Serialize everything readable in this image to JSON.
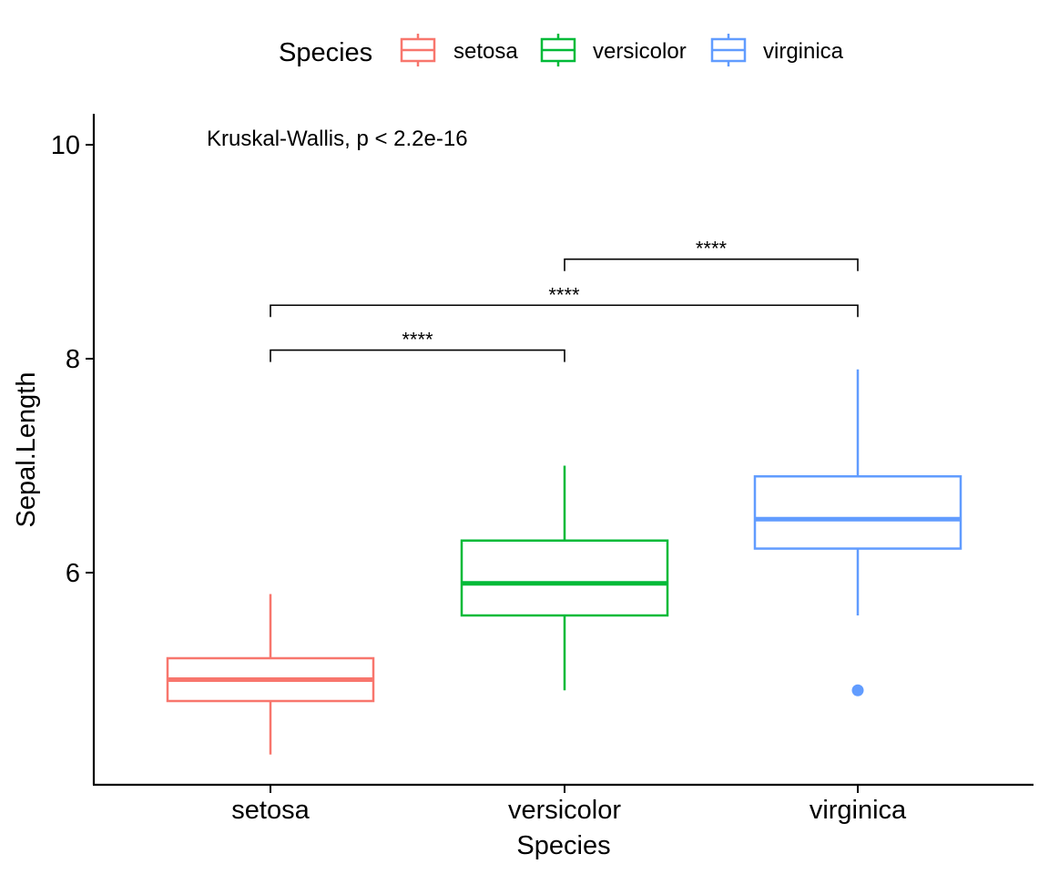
{
  "chart_data": {
    "type": "box",
    "xlabel": "Species",
    "ylabel": "Sepal.Length",
    "ylim": [
      4.0,
      10.3
    ],
    "y_ticks": [
      6,
      8,
      10
    ],
    "grid": false,
    "legend": {
      "title": "Species",
      "position": "top",
      "entries": [
        "setosa",
        "versicolor",
        "virginica"
      ]
    },
    "categories": [
      "setosa",
      "versicolor",
      "virginica"
    ],
    "boxes": [
      {
        "name": "setosa",
        "color": "#F8766D",
        "whisker_low": 4.3,
        "q1": 4.8,
        "median": 5.0,
        "q3": 5.2,
        "whisker_high": 5.8,
        "outliers": []
      },
      {
        "name": "versicolor",
        "color": "#00BA38",
        "whisker_low": 4.9,
        "q1": 5.6,
        "median": 5.9,
        "q3": 6.3,
        "whisker_high": 7.0,
        "outliers": []
      },
      {
        "name": "virginica",
        "color": "#619CFF",
        "whisker_low": 5.6,
        "q1": 6.225,
        "median": 6.5,
        "q3": 6.9,
        "whisker_high": 7.9,
        "outliers": [
          4.9
        ]
      }
    ],
    "annotation": "Kruskal-Wallis, p < 2.2e-16",
    "comparisons": [
      {
        "from": "setosa",
        "to": "versicolor",
        "y": 8.08,
        "label": "****"
      },
      {
        "from": "setosa",
        "to": "virginica",
        "y": 8.5,
        "label": "****"
      },
      {
        "from": "versicolor",
        "to": "virginica",
        "y": 8.93,
        "label": "****"
      }
    ]
  }
}
